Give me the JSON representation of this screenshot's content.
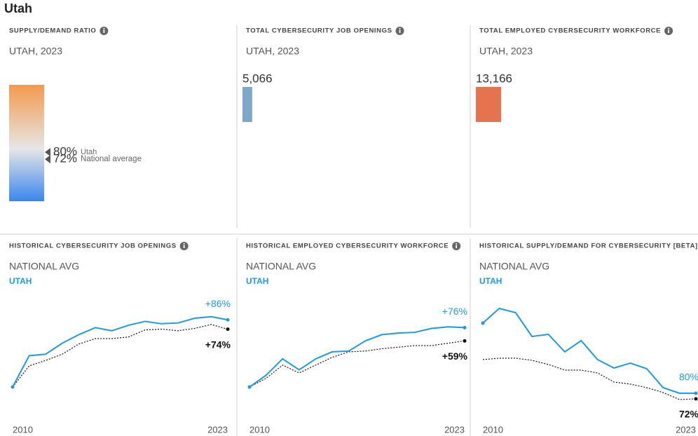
{
  "title": "Utah",
  "summary": [
    {
      "heading": "SUPPLY/DEMAND RATIO",
      "subheading": "UTAH, 2023",
      "type": "gauge",
      "gauge_lim": [
        24,
        157
      ],
      "series": [
        {
          "name": "Utah",
          "value": 80,
          "value_label": "80%"
        },
        {
          "name": "National average",
          "value": 72,
          "value_label": "72%"
        }
      ]
    },
    {
      "heading": "TOTAL CYBERSECURITY JOB OPENINGS",
      "subheading": "UTAH, 2023",
      "type": "bar",
      "value": 5066,
      "value_label": "5,066",
      "color": "#7fa7cb",
      "xlim": [
        0,
        30000
      ]
    },
    {
      "heading": "TOTAL EMPLOYED CYBERSECURITY WORKFORCE",
      "subheading": "UTAH, 2023",
      "type": "bar",
      "value": 13166,
      "value_label": "13,166",
      "color": "#e4734f",
      "xlim": [
        0,
        30000
      ]
    }
  ],
  "history": [
    {
      "heading": "HISTORICAL CYBERSECURITY JOB OPENINGS",
      "type": "line",
      "x": [
        "2010",
        null,
        null,
        null,
        null,
        null,
        null,
        null,
        null,
        null,
        null,
        null,
        null,
        "2023"
      ],
      "ylim": [
        -43,
        123
      ],
      "series": [
        {
          "name": "NATIONAL AVG",
          "color": "#111111",
          "values": [
            0,
            27,
            34,
            42,
            55,
            62,
            62,
            64,
            73,
            74,
            72,
            75,
            80,
            74
          ],
          "value_labels": [
            null,
            null,
            null,
            null,
            null,
            null,
            null,
            null,
            null,
            null,
            null,
            null,
            null,
            "+74%"
          ]
        },
        {
          "name": "UTAH",
          "color": "#1e9ae0",
          "values": [
            0,
            40,
            42,
            56,
            67,
            76,
            72,
            79,
            84,
            81,
            82,
            88,
            90,
            86
          ],
          "value_labels": [
            null,
            null,
            null,
            null,
            null,
            null,
            null,
            null,
            null,
            null,
            null,
            null,
            null,
            "+86%"
          ]
        }
      ]
    },
    {
      "heading": "HISTORICAL EMPLOYED CYBERSECURITY WORKFORCE",
      "type": "line",
      "x": [
        "2010",
        null,
        null,
        null,
        null,
        null,
        null,
        null,
        null,
        null,
        null,
        null,
        null,
        "2023"
      ],
      "ylim": [
        -43,
        123
      ],
      "series": [
        {
          "name": "NATIONAL AVG",
          "color": "#111111",
          "values": [
            0,
            11,
            28,
            18,
            28,
            38,
            45,
            46,
            49,
            51,
            53,
            53,
            56,
            59
          ],
          "value_labels": [
            null,
            null,
            null,
            null,
            null,
            null,
            null,
            null,
            null,
            null,
            null,
            null,
            null,
            "+59%"
          ]
        },
        {
          "name": "UTAH",
          "color": "#1e9ae0",
          "values": [
            0,
            15,
            36,
            22,
            36,
            45,
            46,
            59,
            67,
            69,
            70,
            75,
            77,
            76
          ],
          "value_labels": [
            null,
            null,
            null,
            null,
            null,
            null,
            null,
            null,
            null,
            null,
            null,
            null,
            null,
            "+76%"
          ]
        }
      ]
    },
    {
      "heading": "HISTORICAL SUPPLY/DEMAND FOR CYBERSECURITY [BETA]",
      "type": "line",
      "x": [
        "2010",
        null,
        null,
        null,
        null,
        null,
        null,
        null,
        null,
        null,
        null,
        null,
        null,
        "2023"
      ],
      "ylim": [
        41,
        226
      ],
      "series": [
        {
          "name": "NATIONAL AVG",
          "color": "#111111",
          "values": [
            128,
            130,
            130,
            127,
            121,
            113,
            113,
            109,
            96,
            93,
            88,
            81,
            71,
            72
          ],
          "value_labels": [
            null,
            null,
            null,
            null,
            null,
            null,
            null,
            null,
            null,
            null,
            null,
            null,
            null,
            "72%"
          ]
        },
        {
          "name": "UTAH",
          "color": "#1e9ae0",
          "values": [
            180,
            201,
            195,
            161,
            164,
            139,
            155,
            128,
            116,
            123,
            115,
            88,
            80,
            80
          ],
          "value_labels": [
            null,
            null,
            null,
            null,
            null,
            null,
            null,
            null,
            null,
            null,
            null,
            null,
            null,
            "80%"
          ]
        }
      ]
    }
  ]
}
